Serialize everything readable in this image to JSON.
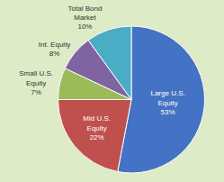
{
  "chart_data": {
    "type": "pie",
    "categories": [
      "Large U.S.\nEquity\n53%",
      "Mid U.S.\nEquity\n22%",
      "Small U.S.\nEquity\n7%",
      "Int. Equity\n8%",
      "Total Bond\nMarket\n10%"
    ],
    "values": [
      53,
      22,
      7,
      8,
      10
    ],
    "colors": [
      "#4472C4",
      "#C0504D",
      "#9BBB59",
      "#8064A2",
      "#4BACC6"
    ]
  }
}
